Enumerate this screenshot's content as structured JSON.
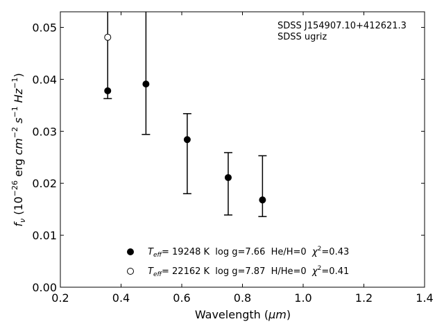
{
  "chart_data": {
    "type": "scatter",
    "xlabel_main": "Wavelength (",
    "xlabel_unit": "μm",
    "xlabel_close": ")",
    "ylabel_f": "f",
    "ylabel_sub": "ν",
    "ylabel_open": " (10",
    "ylabel_exp1": "−26",
    "ylabel_erg": " erg ",
    "ylabel_cm": "cm",
    "ylabel_exp2": "−2",
    "ylabel_s": " s",
    "ylabel_exp3": "−1",
    "ylabel_hz": " Hz",
    "ylabel_exp4": "−1",
    "ylabel_close": ")",
    "xlim": [
      0.2,
      1.4
    ],
    "ylim": [
      0.0,
      0.053
    ],
    "xticks": [
      0.2,
      0.4,
      0.6,
      0.8,
      1.0,
      1.2,
      1.4
    ],
    "xtick_labels": [
      "0.2",
      "0.4",
      "0.6",
      "0.8",
      "1.0",
      "1.2",
      "1.4"
    ],
    "yticks": [
      0.0,
      0.01,
      0.02,
      0.03,
      0.04,
      0.05
    ],
    "ytick_labels": [
      "0.00",
      "0.01",
      "0.02",
      "0.03",
      "0.04",
      "0.05"
    ],
    "grid": false,
    "annotation": [
      "SDSS J154907.10+412621.3",
      "SDSS ugriz"
    ],
    "errorbars": [
      {
        "x": 0.356,
        "y": 0.0378,
        "low": 0.0363,
        "high": 0.053
      },
      {
        "x": 0.482,
        "y": 0.0391,
        "low": 0.0294,
        "high": 0.053
      },
      {
        "x": 0.618,
        "y": 0.0284,
        "low": 0.018,
        "high": 0.0334
      },
      {
        "x": 0.753,
        "y": 0.0211,
        "low": 0.0139,
        "high": 0.0259
      },
      {
        "x": 0.866,
        "y": 0.0168,
        "low": 0.0136,
        "high": 0.0253
      }
    ],
    "series": [
      {
        "marker": "filled",
        "color": "#000000",
        "x": [
          0.356,
          0.482,
          0.618,
          0.753,
          0.866
        ],
        "y": [
          0.0378,
          0.0391,
          0.0284,
          0.0211,
          0.0168
        ]
      },
      {
        "marker": "open",
        "color": "#000000",
        "x": [
          0.356
        ],
        "y": [
          0.0481
        ]
      }
    ],
    "legend": {
      "placement": "lower-center",
      "entries": [
        {
          "teff_T": "T",
          "teff_sub": "eff",
          "text": "= 19248 K  log g=7.66  He/H=0  ",
          "chi": "χ",
          "chi_exp": "2",
          "chi_val": "=0.43"
        },
        {
          "teff_T": "T",
          "teff_sub": "eff",
          "text": "= 22162 K  log g=7.87  H/He=0  ",
          "chi": "χ",
          "chi_exp": "2",
          "chi_val": "=0.41"
        }
      ]
    }
  }
}
